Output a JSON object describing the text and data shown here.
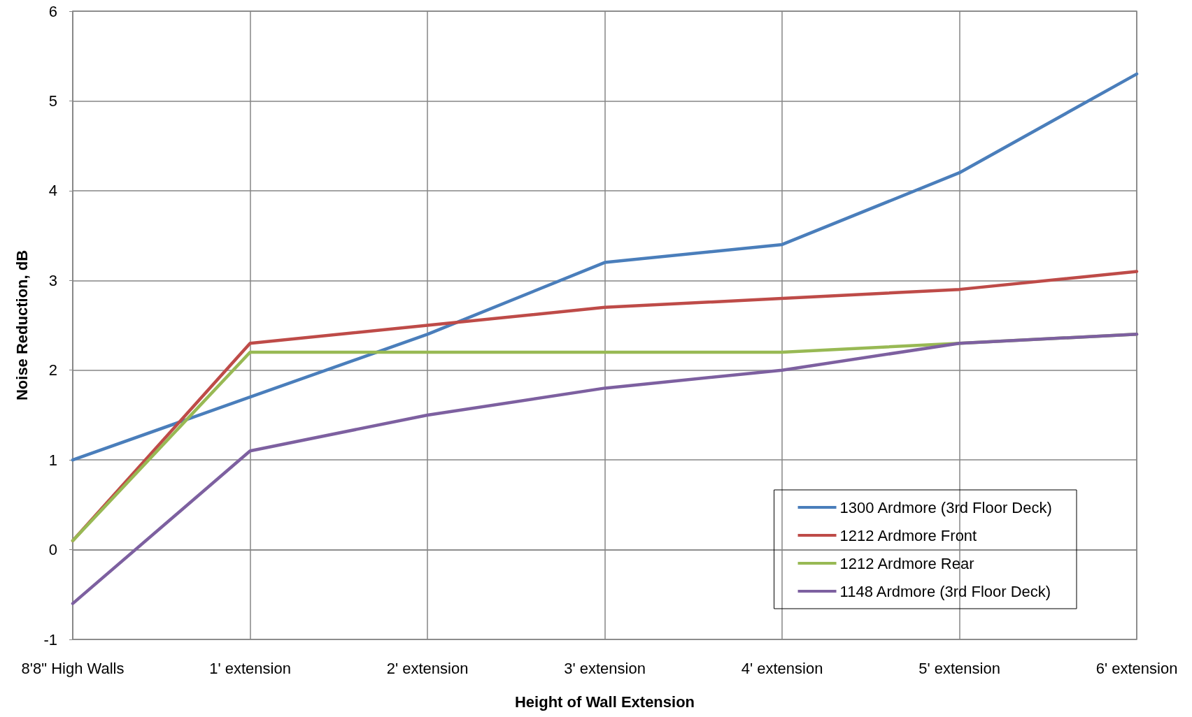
{
  "chart_data": {
    "type": "line",
    "xlabel": "Height of Wall Extension",
    "ylabel": "Noise Reduction, dB",
    "categories": [
      "8'8\" High Walls",
      "1' extension",
      "2' extension",
      "3' extension",
      "4' extension",
      "5' extension",
      "6' extension"
    ],
    "series": [
      {
        "name": "1300 Ardmore (3rd Floor Deck)",
        "color": "#4a7ebb",
        "values": [
          1.0,
          1.7,
          2.4,
          3.2,
          3.4,
          4.2,
          5.3
        ]
      },
      {
        "name": "1212 Ardmore Front",
        "color": "#be4b48",
        "values": [
          0.1,
          2.3,
          2.5,
          2.7,
          2.8,
          2.9,
          3.1
        ]
      },
      {
        "name": "1212 Ardmore Rear",
        "color": "#98b954",
        "values": [
          0.1,
          2.2,
          2.2,
          2.2,
          2.2,
          2.3,
          2.4
        ]
      },
      {
        "name": "1148 Ardmore (3rd Floor Deck)",
        "color": "#7d60a0",
        "values": [
          -0.6,
          1.1,
          1.5,
          1.8,
          2.0,
          2.3,
          2.4
        ]
      }
    ],
    "ylim": [
      -1,
      6
    ],
    "yticks": [
      -1,
      0,
      1,
      2,
      3,
      4,
      5,
      6
    ],
    "grid": true,
    "legend": "bottom right",
    "marker": "none",
    "line_style": "solid"
  }
}
